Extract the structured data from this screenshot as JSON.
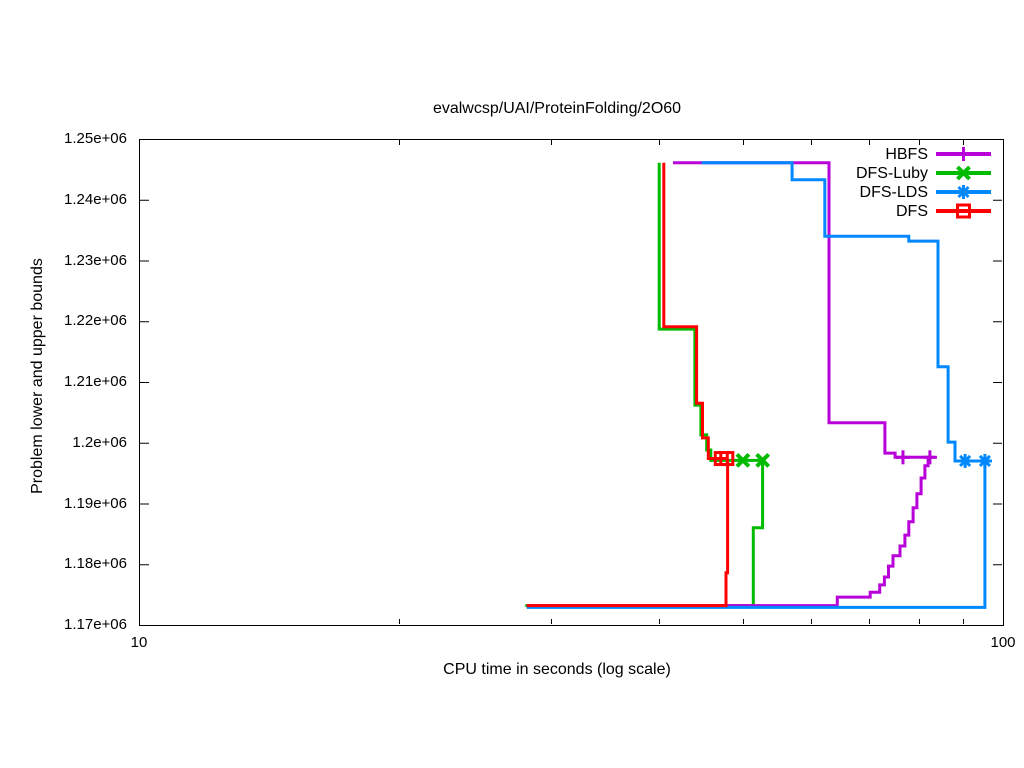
{
  "window": {
    "background": "#ffffff"
  },
  "chart_data": {
    "type": "line",
    "subtype": "step-bounds",
    "title": "evalwcsp/UAI/ProteinFolding/2O60",
    "xlabel": "CPU time in seconds (log scale)",
    "ylabel": "Problem lower and upper bounds",
    "x_scale": "log10",
    "xlim": [
      10,
      100
    ],
    "ylim": [
      1170000,
      1250000
    ],
    "grid": false,
    "legend_position": "top-right-inside",
    "x_tick_labels": [
      "10",
      "100"
    ],
    "x_minor_ticks": [
      20,
      30,
      40,
      50,
      60,
      70,
      80,
      90
    ],
    "y_ticks": [
      1250000,
      1240000,
      1230000,
      1220000,
      1210000,
      1200000,
      1190000,
      1180000,
      1170000
    ],
    "y_tick_labels": [
      "1.25e+06",
      "1.24e+06",
      "1.23e+06",
      "1.22e+06",
      "1.21e+06",
      "1.2e+06",
      "1.19e+06",
      "1.18e+06",
      "1.17e+06"
    ],
    "axis_color": "#000000",
    "series": [
      {
        "name": "HBFS",
        "color": "#b800d8",
        "marker": "plus",
        "upper_bound": [
          [
            41.5,
            1246100
          ],
          [
            62.9,
            1246100
          ],
          [
            62.9,
            1203300
          ],
          [
            73.0,
            1203300
          ],
          [
            73.0,
            1198300
          ],
          [
            75.0,
            1198300
          ],
          [
            75.0,
            1197600
          ],
          [
            83.4,
            1197600
          ]
        ],
        "lower_bound": [
          [
            28.1,
            1173200
          ],
          [
            64.3,
            1173200
          ],
          [
            64.3,
            1174600
          ],
          [
            70.2,
            1174600
          ],
          [
            70.2,
            1175400
          ],
          [
            72.0,
            1175400
          ],
          [
            72.0,
            1176600
          ],
          [
            72.9,
            1176600
          ],
          [
            72.9,
            1177900
          ],
          [
            73.7,
            1177900
          ],
          [
            73.7,
            1179700
          ],
          [
            74.6,
            1179700
          ],
          [
            74.6,
            1181400
          ],
          [
            76.0,
            1181400
          ],
          [
            76.0,
            1183000
          ],
          [
            77.0,
            1183000
          ],
          [
            77.0,
            1184800
          ],
          [
            77.8,
            1184800
          ],
          [
            77.8,
            1187000
          ],
          [
            78.7,
            1187000
          ],
          [
            78.7,
            1189300
          ],
          [
            79.5,
            1189300
          ],
          [
            79.5,
            1191600
          ],
          [
            80.4,
            1191600
          ],
          [
            80.4,
            1194200
          ],
          [
            81.2,
            1194200
          ],
          [
            81.2,
            1196200
          ],
          [
            81.9,
            1196200
          ],
          [
            81.9,
            1197600
          ],
          [
            82.3,
            1197600
          ]
        ],
        "marker_points": [
          [
            76.6,
            1197600
          ],
          [
            82.3,
            1197600
          ]
        ]
      },
      {
        "name": "DFS-Luby",
        "color": "#00bb00",
        "marker": "cross",
        "upper_bound": [
          [
            40.0,
            1246100
          ],
          [
            40.0,
            1218700
          ],
          [
            44.0,
            1218700
          ],
          [
            44.0,
            1206200
          ],
          [
            44.7,
            1206200
          ],
          [
            44.7,
            1201300
          ],
          [
            45.4,
            1201300
          ],
          [
            45.4,
            1198800
          ],
          [
            45.9,
            1198800
          ],
          [
            45.9,
            1197100
          ],
          [
            52.7,
            1197100
          ]
        ],
        "lower_bound": [
          [
            28.0,
            1173200
          ],
          [
            51.4,
            1173200
          ],
          [
            51.4,
            1186000
          ],
          [
            52.7,
            1186000
          ],
          [
            52.7,
            1197100
          ]
        ],
        "marker_points": [
          [
            50.0,
            1197100
          ],
          [
            52.7,
            1197100
          ]
        ]
      },
      {
        "name": "DFS-LDS",
        "color": "#0088ff",
        "marker": "asterisk",
        "upper_bound": [
          [
            44.8,
            1246100
          ],
          [
            57.0,
            1246100
          ],
          [
            57.0,
            1243300
          ],
          [
            62.2,
            1243300
          ],
          [
            62.2,
            1234000
          ],
          [
            77.8,
            1234000
          ],
          [
            77.8,
            1233200
          ],
          [
            84.1,
            1233200
          ],
          [
            84.1,
            1212500
          ],
          [
            86.4,
            1212500
          ],
          [
            86.4,
            1200100
          ],
          [
            88.0,
            1200100
          ],
          [
            88.0,
            1197000
          ],
          [
            95.3,
            1197000
          ]
        ],
        "lower_bound": [
          [
            28.1,
            1172900
          ],
          [
            95.3,
            1172900
          ],
          [
            95.3,
            1197000
          ]
        ],
        "marker_points": [
          [
            90.4,
            1197000
          ],
          [
            95.3,
            1197000
          ]
        ]
      },
      {
        "name": "DFS",
        "color": "#ff0000",
        "marker": "square",
        "upper_bound": [
          [
            40.5,
            1246100
          ],
          [
            40.5,
            1219100
          ],
          [
            44.2,
            1219100
          ],
          [
            44.2,
            1206500
          ],
          [
            44.9,
            1206500
          ],
          [
            44.9,
            1200800
          ],
          [
            45.6,
            1200800
          ],
          [
            45.6,
            1197400
          ],
          [
            48.0,
            1197400
          ]
        ],
        "lower_bound": [
          [
            28.1,
            1173200
          ],
          [
            47.8,
            1173200
          ],
          [
            47.8,
            1178600
          ],
          [
            48.0,
            1178600
          ],
          [
            48.0,
            1197400
          ]
        ],
        "marker_points": [
          [
            47.2,
            1197400
          ],
          [
            47.9,
            1197400
          ]
        ]
      }
    ]
  }
}
